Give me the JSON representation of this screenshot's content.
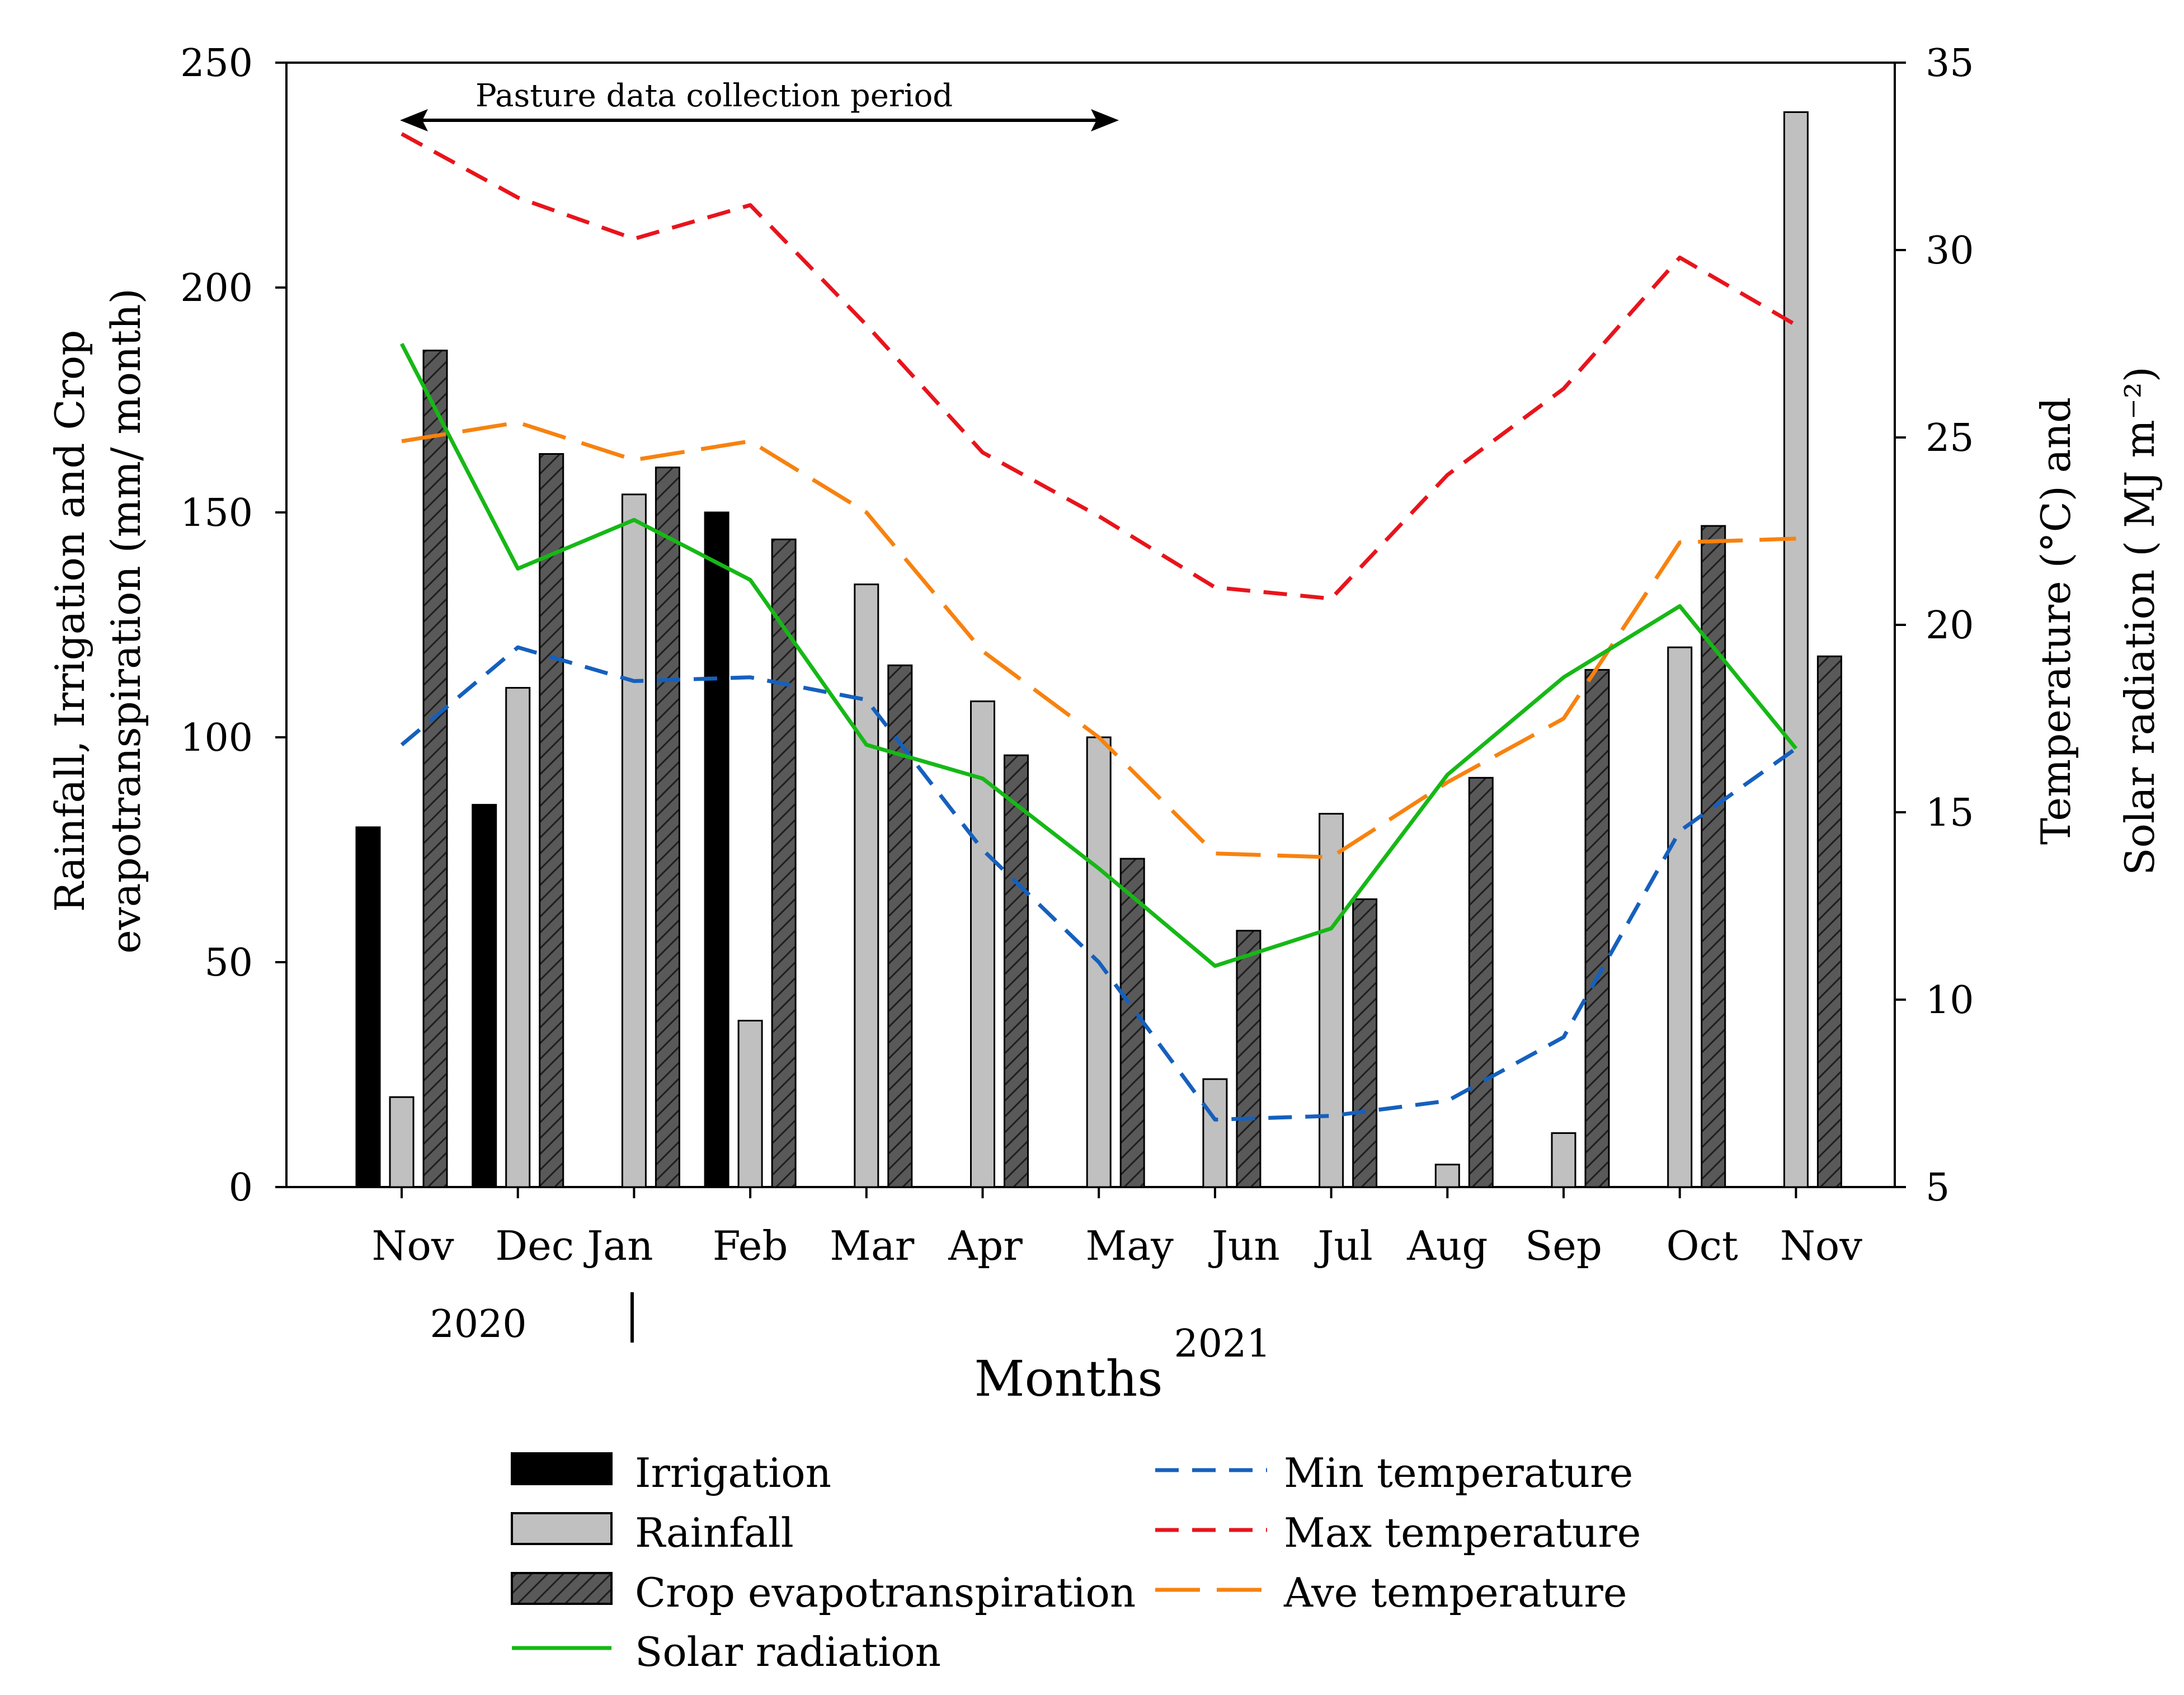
{
  "chart_data": {
    "type": "bar",
    "months": [
      "Nov",
      "Dec",
      "Jan",
      "Feb",
      "Mar",
      "Apr",
      "May",
      "Jun",
      "Jul",
      "Aug",
      "Sep",
      "Oct",
      "Nov"
    ],
    "years": [
      "2020",
      "2021"
    ],
    "xlabel": "Months",
    "ylabel_left": [
      "Rainfall, Irrigation and Crop",
      "evapotranspiration (mm/ month)"
    ],
    "ylabel_right": {
      "line1": "Temperature (°C) and",
      "line2": "Solar radiation ( MJ m⁻²)"
    },
    "ylim_left": [
      0,
      250
    ],
    "yticks_left": [
      0,
      50,
      100,
      150,
      200,
      250
    ],
    "ylim_right": [
      5,
      35
    ],
    "yticks_right": [
      5,
      10,
      15,
      20,
      25,
      30,
      35
    ],
    "annotation": "Pasture data collection period",
    "annotation_span": [
      "Nov",
      "May"
    ],
    "bar_series": [
      {
        "key": "irrigation",
        "name": "Irrigation",
        "color": "#000000",
        "values": [
          80,
          85,
          null,
          150,
          null,
          null,
          null,
          null,
          null,
          null,
          null,
          null,
          null
        ]
      },
      {
        "key": "rainfall",
        "name": "Rainfall",
        "color": "#c0c0c0",
        "values": [
          20,
          111,
          154,
          37,
          134,
          108,
          100,
          24,
          83,
          5,
          12,
          120,
          239
        ]
      },
      {
        "key": "cropET",
        "name": "Crop evapotranspiration",
        "color": "#595959",
        "values": [
          186,
          163,
          160,
          144,
          116,
          96,
          73,
          57,
          64,
          91,
          115,
          147,
          118
        ]
      }
    ],
    "line_series": [
      {
        "key": "min_temp",
        "name": "Min temperature",
        "color": "#1560bd",
        "dash": "medium",
        "values": [
          16.8,
          19.4,
          18.5,
          18.6,
          18.0,
          14.0,
          11.0,
          6.8,
          6.9,
          7.3,
          9.0,
          14.5,
          16.7
        ]
      },
      {
        "key": "max_temp",
        "name": "Max temperature",
        "color": "#e8141c",
        "dash": "medium",
        "values": [
          33.1,
          31.4,
          30.3,
          31.2,
          28.0,
          24.6,
          22.9,
          21.0,
          20.7,
          24.0,
          26.3,
          29.8,
          28.0
        ]
      },
      {
        "key": "ave_temp",
        "name": "Ave temperature",
        "color": "#f7820f",
        "dash": "long",
        "values": [
          24.9,
          25.4,
          24.4,
          24.9,
          23.0,
          19.3,
          17.0,
          13.9,
          13.8,
          15.8,
          17.5,
          22.2,
          22.3
        ]
      },
      {
        "key": "solar",
        "name": "Solar radiation",
        "color": "#16b816",
        "dash": "solid",
        "values": [
          27.5,
          21.5,
          22.8,
          21.2,
          16.8,
          15.9,
          13.5,
          10.9,
          11.9,
          16.0,
          18.6,
          20.5,
          16.7
        ]
      }
    ],
    "legend_left": [
      "Irrigation",
      "Rainfall",
      "Crop evapotranspiration",
      "Solar radiation"
    ],
    "legend_right": [
      "Min temperature",
      "Max temperature",
      "Ave temperature"
    ]
  }
}
